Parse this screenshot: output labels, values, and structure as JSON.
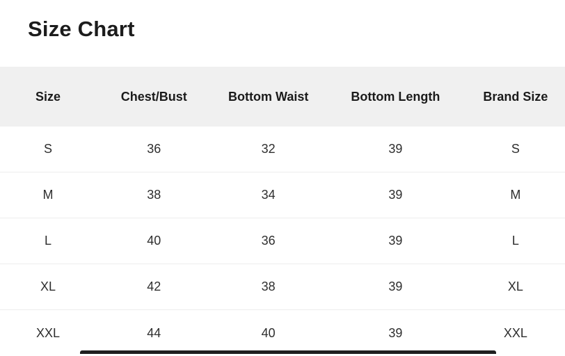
{
  "page": {
    "title": "Size Chart"
  },
  "table": {
    "columns": [
      "Size",
      "Chest/Bust",
      "Bottom Waist",
      "Bottom Length",
      "Brand Size"
    ],
    "rows": [
      [
        "S",
        "36",
        "32",
        "39",
        "S"
      ],
      [
        "M",
        "38",
        "34",
        "39",
        "M"
      ],
      [
        "L",
        "40",
        "36",
        "39",
        "L"
      ],
      [
        "XL",
        "42",
        "38",
        "39",
        "XL"
      ],
      [
        "XXL",
        "44",
        "40",
        "39",
        "XXL"
      ]
    ]
  },
  "colors": {
    "header_bg": "#f0f0f0",
    "row_divider": "#ededed",
    "title_text": "#1c1c1c",
    "header_text": "#1b1b1b",
    "cell_text": "#2e2e2e",
    "bottom_bar": "#1f1f1f"
  }
}
